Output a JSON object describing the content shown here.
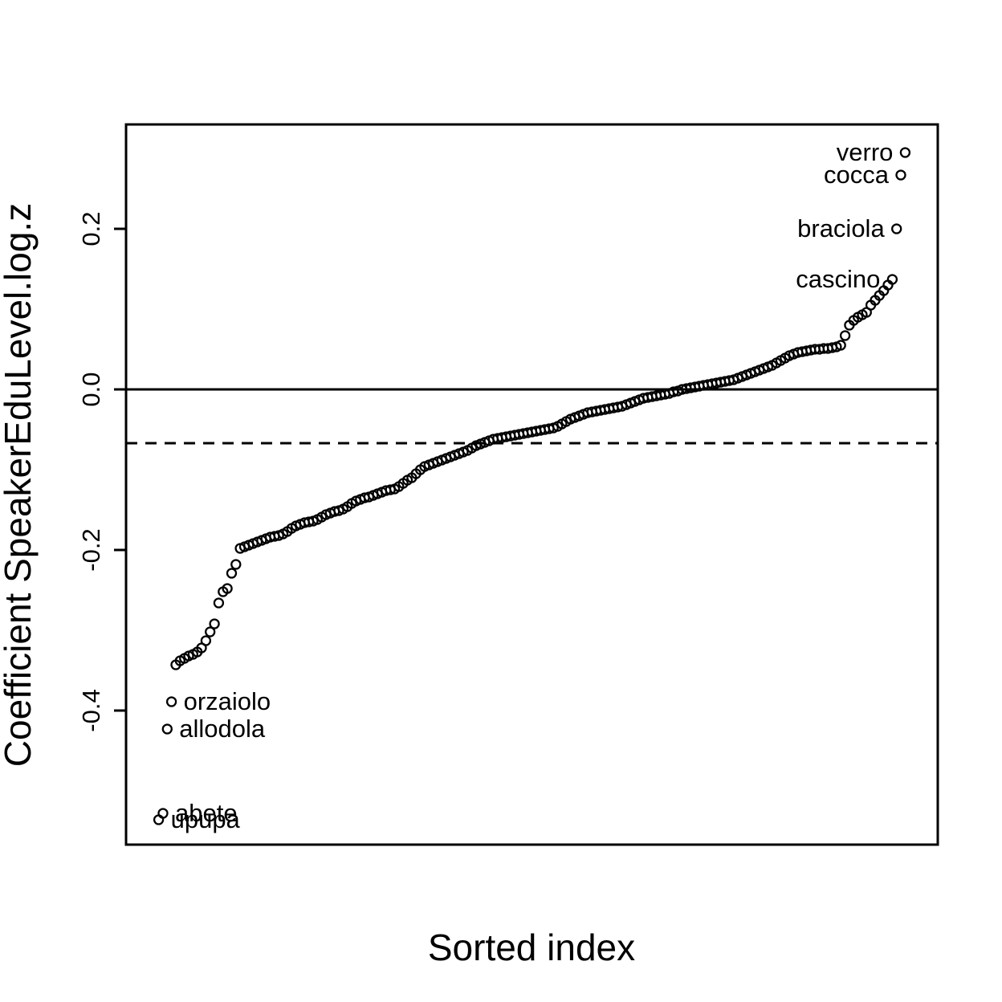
{
  "figure": {
    "background": "#ffffff",
    "foreground": "#000000"
  },
  "chart_data": {
    "type": "scatter",
    "title": "",
    "xlabel": "Sorted index",
    "ylabel": "Coefficient SpeakerEduLevel.log.z",
    "marker": "open-circle",
    "grid": false,
    "legend": null,
    "n_points": 175,
    "x_axis": {
      "shown": false
    },
    "y_ticks": [
      0.2,
      0.0,
      -0.2,
      -0.4
    ],
    "y_tick_labels": [
      "0.2",
      "0.0",
      "-0.2",
      "-0.4"
    ],
    "ylim": [
      -0.567,
      0.33
    ],
    "xlim": [
      -6.6,
      182.6
    ],
    "ref_lines": [
      {
        "y": 0.0,
        "style": "solid"
      },
      {
        "y": -0.067,
        "style": "dashed"
      }
    ],
    "values": [
      -0.536,
      -0.528,
      -0.423,
      -0.389,
      -0.343,
      -0.338,
      -0.335,
      -0.332,
      -0.33,
      -0.327,
      -0.322,
      -0.313,
      -0.302,
      -0.292,
      -0.266,
      -0.252,
      -0.248,
      -0.229,
      -0.218,
      -0.198,
      -0.196,
      -0.194,
      -0.192,
      -0.19,
      -0.188,
      -0.186,
      -0.184,
      -0.183,
      -0.182,
      -0.18,
      -0.177,
      -0.173,
      -0.17,
      -0.168,
      -0.166,
      -0.165,
      -0.164,
      -0.162,
      -0.159,
      -0.156,
      -0.154,
      -0.152,
      -0.151,
      -0.149,
      -0.146,
      -0.142,
      -0.139,
      -0.137,
      -0.135,
      -0.134,
      -0.132,
      -0.13,
      -0.128,
      -0.126,
      -0.125,
      -0.124,
      -0.121,
      -0.117,
      -0.113,
      -0.11,
      -0.105,
      -0.1,
      -0.096,
      -0.094,
      -0.092,
      -0.09,
      -0.088,
      -0.086,
      -0.084,
      -0.082,
      -0.08,
      -0.078,
      -0.076,
      -0.073,
      -0.07,
      -0.068,
      -0.066,
      -0.064,
      -0.062,
      -0.061,
      -0.06,
      -0.059,
      -0.058,
      -0.057,
      -0.056,
      -0.055,
      -0.054,
      -0.053,
      -0.052,
      -0.051,
      -0.05,
      -0.049,
      -0.048,
      -0.046,
      -0.043,
      -0.04,
      -0.037,
      -0.035,
      -0.033,
      -0.031,
      -0.029,
      -0.028,
      -0.027,
      -0.026,
      -0.025,
      -0.024,
      -0.023,
      -0.022,
      -0.021,
      -0.019,
      -0.017,
      -0.015,
      -0.013,
      -0.011,
      -0.01,
      -0.009,
      -0.008,
      -0.007,
      -0.006,
      -0.005,
      -0.003,
      -0.002,
      0.0,
      0.001,
      0.002,
      0.003,
      0.004,
      0.005,
      0.006,
      0.007,
      0.008,
      0.009,
      0.01,
      0.011,
      0.012,
      0.014,
      0.016,
      0.018,
      0.02,
      0.022,
      0.024,
      0.026,
      0.028,
      0.03,
      0.033,
      0.036,
      0.039,
      0.042,
      0.044,
      0.046,
      0.047,
      0.048,
      0.049,
      0.05,
      0.05,
      0.051,
      0.051,
      0.052,
      0.053,
      0.055,
      0.067,
      0.08,
      0.086,
      0.09,
      0.093,
      0.096,
      0.105,
      0.111,
      0.117,
      0.123,
      0.13,
      0.137,
      0.2,
      0.267,
      0.295
    ],
    "point_labels": [
      {
        "index": 1,
        "text": "upupa",
        "side": "right"
      },
      {
        "index": 2,
        "text": "abete",
        "side": "right"
      },
      {
        "index": 3,
        "text": "allodola",
        "side": "right"
      },
      {
        "index": 4,
        "text": "orzaiolo",
        "side": "right"
      },
      {
        "index": 172,
        "text": "cascino",
        "side": "left"
      },
      {
        "index": 173,
        "text": "braciola",
        "side": "left"
      },
      {
        "index": 174,
        "text": "cocca",
        "side": "left"
      },
      {
        "index": 175,
        "text": "verro",
        "side": "left"
      }
    ]
  }
}
